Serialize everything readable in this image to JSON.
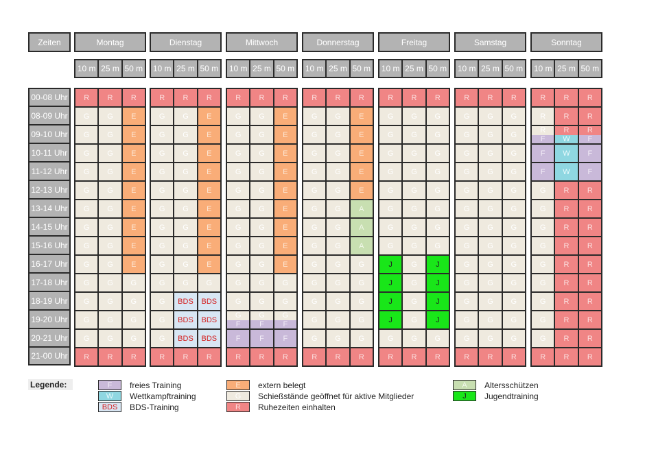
{
  "header": {
    "zeiten": "Zeiten",
    "days": [
      "Montag",
      "Dienstag",
      "Mittwoch",
      "Donnerstag",
      "Freitag",
      "Samstag",
      "Sonntag"
    ],
    "lanes": [
      "10 m",
      "25 m",
      "50 m"
    ]
  },
  "times": [
    "00-08 Uhr",
    "08-09 Uhr",
    "09-10 Uhr",
    "10-11 Uhr",
    "11-12 Uhr",
    "12-13 Uhr",
    "13-14 Uhr",
    "14-15 Uhr",
    "15-16 Uhr",
    "16-17 Uhr",
    "17-18 Uhr",
    "18-19 Uhr",
    "19-20 Uhr",
    "20-21 Uhr",
    "21-00 Uhr"
  ],
  "schedule": [
    [
      [
        "R",
        "R",
        "R"
      ],
      [
        "G",
        "G",
        "E"
      ],
      [
        "G",
        "G",
        "E"
      ],
      [
        "G",
        "G",
        "E"
      ],
      [
        "G",
        "G",
        "E"
      ],
      [
        "G",
        "G",
        "E"
      ],
      [
        "G",
        "G",
        "E"
      ],
      [
        "G",
        "G",
        "E"
      ],
      [
        "G",
        "G",
        "E"
      ],
      [
        "G",
        "G",
        "E"
      ],
      [
        "G",
        "G",
        "G"
      ],
      [
        "G",
        "G",
        "G"
      ],
      [
        "G",
        "G",
        "G"
      ],
      [
        "G",
        "G",
        "G"
      ],
      [
        "R",
        "R",
        "R"
      ]
    ],
    [
      [
        "R",
        "R",
        "R"
      ],
      [
        "G",
        "G",
        "E"
      ],
      [
        "G",
        "G",
        "E"
      ],
      [
        "G",
        "G",
        "E"
      ],
      [
        "G",
        "G",
        "E"
      ],
      [
        "G",
        "G",
        "E"
      ],
      [
        "G",
        "G",
        "E"
      ],
      [
        "G",
        "G",
        "E"
      ],
      [
        "G",
        "G",
        "E"
      ],
      [
        "G",
        "G",
        "E"
      ],
      [
        "G",
        "G",
        "G"
      ],
      [
        "G",
        "BDS",
        "BDS"
      ],
      [
        "G",
        "BDS",
        "BDS"
      ],
      [
        "G",
        "BDS",
        "BDS"
      ],
      [
        "R",
        "R",
        "R"
      ]
    ],
    [
      [
        "R",
        "R",
        "R"
      ],
      [
        "G",
        "G",
        "E"
      ],
      [
        "G",
        "G",
        "E"
      ],
      [
        "G",
        "G",
        "E"
      ],
      [
        "G",
        "G",
        "E"
      ],
      [
        "G",
        "G",
        "E"
      ],
      [
        "G",
        "G",
        "E"
      ],
      [
        "G",
        "G",
        "E"
      ],
      [
        "G",
        "G",
        "E"
      ],
      [
        "G",
        "G",
        "E"
      ],
      [
        "G",
        "G",
        "G"
      ],
      [
        "G",
        "G",
        "G"
      ],
      [
        "G/F",
        "G/F",
        "G/F"
      ],
      [
        "F",
        "F",
        "F"
      ],
      [
        "R",
        "R",
        "R"
      ]
    ],
    [
      [
        "R",
        "R",
        "R"
      ],
      [
        "G",
        "G",
        "E"
      ],
      [
        "G",
        "G",
        "E"
      ],
      [
        "G",
        "G",
        "E"
      ],
      [
        "G",
        "G",
        "E"
      ],
      [
        "G",
        "G",
        "E"
      ],
      [
        "G",
        "G",
        "A"
      ],
      [
        "G",
        "G",
        "A"
      ],
      [
        "G",
        "G",
        "A"
      ],
      [
        "G",
        "G",
        "G"
      ],
      [
        "G",
        "G",
        "G"
      ],
      [
        "G",
        "G",
        "G"
      ],
      [
        "G",
        "G",
        "G"
      ],
      [
        "G",
        "G",
        "G"
      ],
      [
        "R",
        "R",
        "R"
      ]
    ],
    [
      [
        "R",
        "R",
        "R"
      ],
      [
        "G",
        "G",
        "G"
      ],
      [
        "G",
        "G",
        "G"
      ],
      [
        "G",
        "G",
        "G"
      ],
      [
        "G",
        "G",
        "G"
      ],
      [
        "G",
        "G",
        "G"
      ],
      [
        "G",
        "G",
        "G"
      ],
      [
        "G",
        "G",
        "G"
      ],
      [
        "G",
        "G",
        "G"
      ],
      [
        "J",
        "G",
        "J"
      ],
      [
        "J",
        "G",
        "J"
      ],
      [
        "J",
        "G",
        "J"
      ],
      [
        "J",
        "G",
        "J"
      ],
      [
        "G",
        "G",
        "G"
      ],
      [
        "R",
        "R",
        "R"
      ]
    ],
    [
      [
        "R",
        "R",
        "R"
      ],
      [
        "G",
        "G",
        "G"
      ],
      [
        "G",
        "G",
        "G"
      ],
      [
        "G",
        "G",
        "G"
      ],
      [
        "G",
        "G",
        "G"
      ],
      [
        "G",
        "G",
        "G"
      ],
      [
        "G",
        "G",
        "G"
      ],
      [
        "G",
        "G",
        "G"
      ],
      [
        "G",
        "G",
        "G"
      ],
      [
        "G",
        "G",
        "G"
      ],
      [
        "G",
        "G",
        "G"
      ],
      [
        "G",
        "G",
        "G"
      ],
      [
        "G",
        "G",
        "G"
      ],
      [
        "G",
        "G",
        "G"
      ],
      [
        "R",
        "R",
        "R"
      ]
    ],
    [
      [
        "R",
        "R",
        "R"
      ],
      [
        "G:R",
        "R",
        "R"
      ],
      [
        "G:R/F",
        "R/W",
        "R/F"
      ],
      [
        "F",
        "W",
        "F"
      ],
      [
        "F",
        "W",
        "F"
      ],
      [
        "G",
        "R",
        "R"
      ],
      [
        "G",
        "R",
        "R"
      ],
      [
        "G",
        "R",
        "R"
      ],
      [
        "G",
        "R",
        "R"
      ],
      [
        "G",
        "R",
        "R"
      ],
      [
        "G",
        "R",
        "R"
      ],
      [
        "G",
        "R",
        "R"
      ],
      [
        "G",
        "R",
        "R"
      ],
      [
        "G",
        "R",
        "R"
      ],
      [
        "R",
        "R",
        "R"
      ]
    ]
  ],
  "legend": {
    "title": "Legende:",
    "items": [
      {
        "code": "F",
        "label": "freies Training"
      },
      {
        "code": "W",
        "label": "Wettkampftraining"
      },
      {
        "code": "BDS",
        "label": "BDS-Training"
      },
      {
        "code": "E",
        "label": "extern belegt"
      },
      {
        "code": "G",
        "label": "Schießstände geöffnet für aktive Mitglieder"
      },
      {
        "code": "R",
        "label": "Ruhezeiten einhalten"
      },
      {
        "code": "A",
        "label": "Altersschützen"
      },
      {
        "code": "J",
        "label": "Jugendtraining"
      }
    ]
  },
  "colors": {
    "R": "#f08585",
    "G": "#efeadf",
    "E": "#f9ad78",
    "F": "#c9b9d9",
    "W": "#8fd7e1",
    "BDS": "#d8e6f3",
    "A": "#c8dfb1",
    "J": "#19e619"
  }
}
